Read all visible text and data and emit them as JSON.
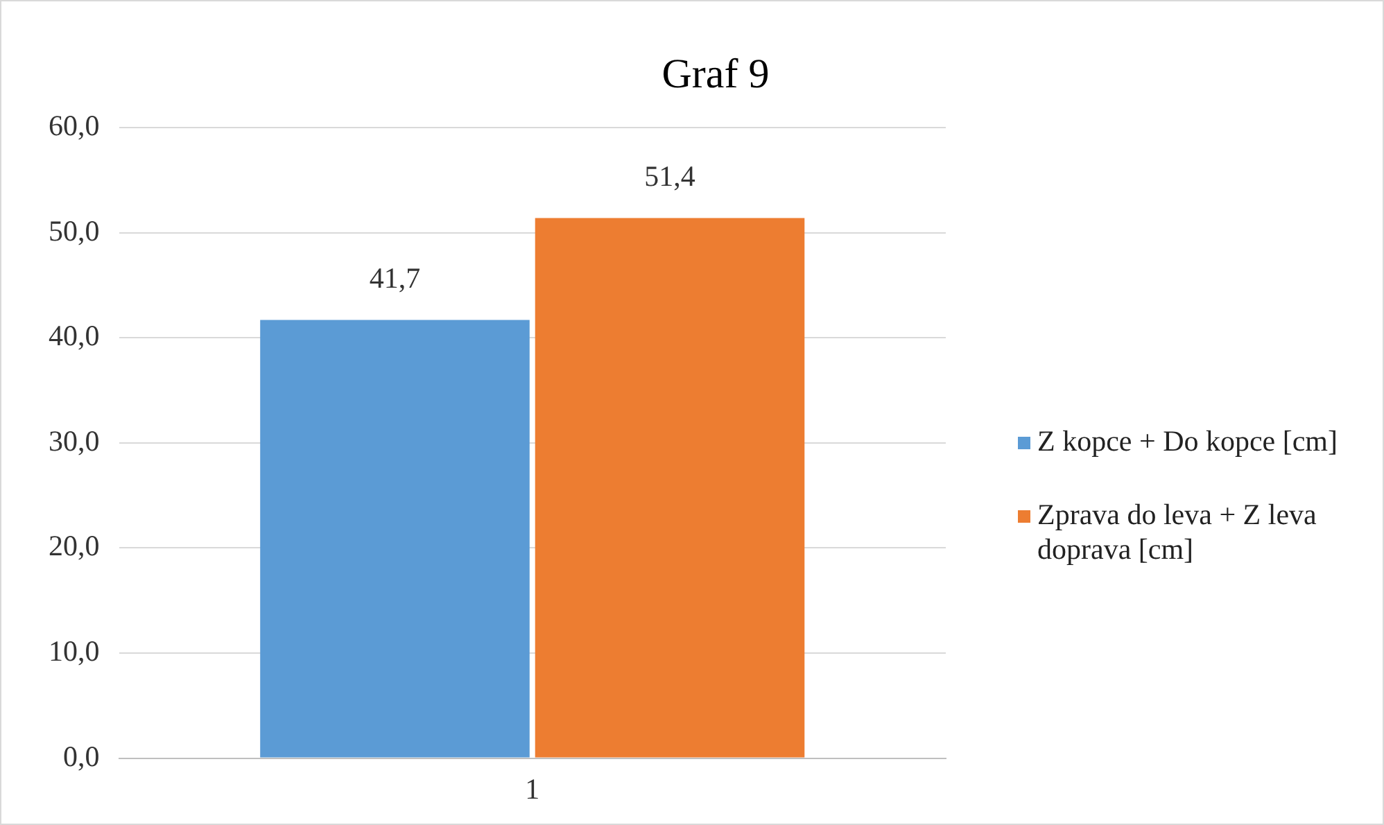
{
  "chart_data": {
    "type": "bar",
    "title": "Graf 9",
    "categories": [
      "1"
    ],
    "series": [
      {
        "name": "Z kopce + Do kopce [cm]",
        "color": "#5b9bd5",
        "values": [
          41.7
        ]
      },
      {
        "name": "Zprava do leva + Z leva doprava [cm]",
        "color": "#ed7d31",
        "values": [
          51.4
        ]
      }
    ],
    "ylim": [
      0,
      60
    ],
    "yticks": [
      {
        "value": 0,
        "label": "0,0"
      },
      {
        "value": 10,
        "label": "10,0"
      },
      {
        "value": 20,
        "label": "20,0"
      },
      {
        "value": 30,
        "label": "30,0"
      },
      {
        "value": 40,
        "label": "40,0"
      },
      {
        "value": 50,
        "label": "50,0"
      },
      {
        "value": 60,
        "label": "60,0"
      }
    ],
    "value_labels": [
      "41,7",
      "51,4"
    ],
    "grid": "y",
    "legend": "right"
  }
}
